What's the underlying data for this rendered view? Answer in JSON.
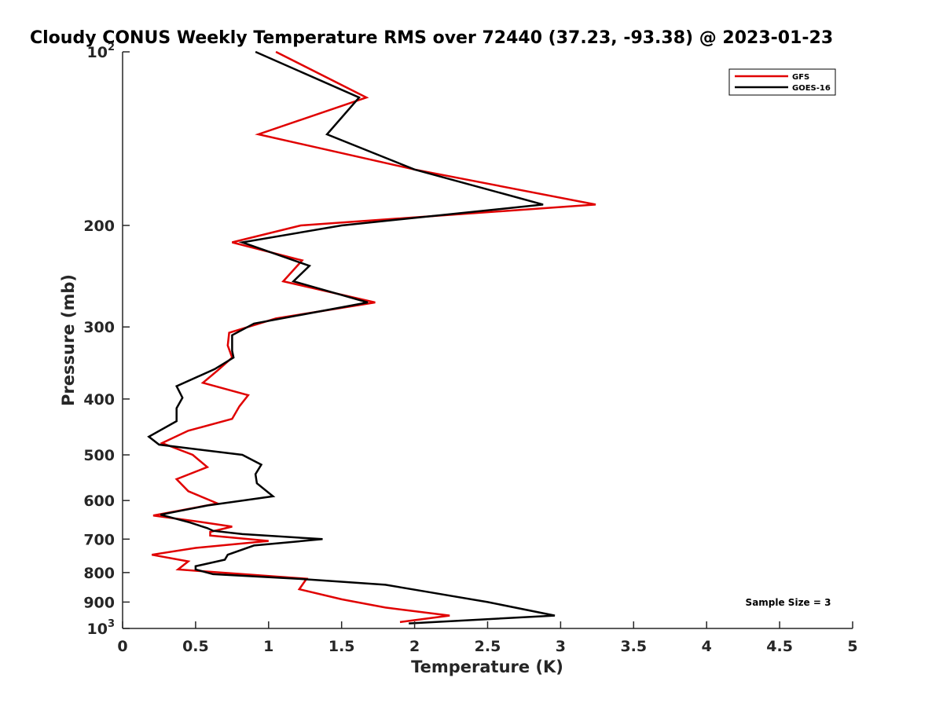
{
  "chart_data": {
    "type": "line",
    "title": "Cloudy CONUS Weekly Temperature RMS over 72440 (37.23, -93.38) @ 2023-01-23",
    "xlabel": "Temperature (K)",
    "ylabel": "Pressure (mb)",
    "xlim": [
      0,
      5
    ],
    "ylim": [
      100,
      1000
    ],
    "y_scale": "log",
    "y_reversed": true,
    "x_ticks": [
      "0",
      "0.5",
      "1",
      "1.5",
      "2",
      "2.5",
      "3",
      "3.5",
      "4",
      "4.5",
      "5"
    ],
    "y_ticks": [
      {
        "value": 100,
        "base": "10",
        "exp": "2"
      },
      {
        "value": 200,
        "label": "200"
      },
      {
        "value": 300,
        "label": "300"
      },
      {
        "value": 400,
        "label": "400"
      },
      {
        "value": 500,
        "label": "500"
      },
      {
        "value": 600,
        "label": "600"
      },
      {
        "value": 700,
        "label": "700"
      },
      {
        "value": 800,
        "label": "800"
      },
      {
        "value": 900,
        "label": "900"
      },
      {
        "value": 1000,
        "base": "10",
        "exp": "3"
      }
    ],
    "grid": false,
    "legend_position": "top-right",
    "annotation": "Sample Size = 3",
    "series": [
      {
        "name": "GFS",
        "color": "#e00000",
        "points": [
          [
            1.05,
            100
          ],
          [
            1.67,
            120
          ],
          [
            0.93,
            139
          ],
          [
            2.0,
            160
          ],
          [
            3.24,
            184
          ],
          [
            1.22,
            200
          ],
          [
            0.75,
            214
          ],
          [
            1.23,
            230
          ],
          [
            1.1,
            250
          ],
          [
            1.73,
            272
          ],
          [
            1.05,
            290
          ],
          [
            0.73,
            307
          ],
          [
            0.72,
            323
          ],
          [
            0.75,
            339
          ],
          [
            0.65,
            357
          ],
          [
            0.55,
            375
          ],
          [
            0.86,
            394
          ],
          [
            0.8,
            412
          ],
          [
            0.75,
            433
          ],
          [
            0.45,
            454
          ],
          [
            0.27,
            477
          ],
          [
            0.48,
            500
          ],
          [
            0.58,
            525
          ],
          [
            0.37,
            551
          ],
          [
            0.45,
            578
          ],
          [
            0.65,
            607
          ],
          [
            0.21,
            637
          ],
          [
            0.56,
            655
          ],
          [
            0.75,
            666
          ],
          [
            0.6,
            680
          ],
          [
            0.6,
            690
          ],
          [
            1.0,
            705
          ],
          [
            0.5,
            725
          ],
          [
            0.2,
            745
          ],
          [
            0.45,
            765
          ],
          [
            0.38,
            790
          ],
          [
            1.26,
            820
          ],
          [
            1.21,
            855
          ],
          [
            1.5,
            890
          ],
          [
            1.8,
            920
          ],
          [
            2.24,
            950
          ],
          [
            1.9,
            975
          ]
        ]
      },
      {
        "name": "GOES-16",
        "color": "#000000",
        "points": [
          [
            0.91,
            100
          ],
          [
            1.62,
            120
          ],
          [
            1.4,
            139
          ],
          [
            2.0,
            160
          ],
          [
            2.88,
            184
          ],
          [
            1.5,
            200
          ],
          [
            0.82,
            214
          ],
          [
            1.28,
            235
          ],
          [
            1.17,
            250
          ],
          [
            1.68,
            272
          ],
          [
            0.9,
            296
          ],
          [
            0.75,
            310
          ],
          [
            0.75,
            330
          ],
          [
            0.76,
            339
          ],
          [
            0.63,
            355
          ],
          [
            0.37,
            380
          ],
          [
            0.41,
            398
          ],
          [
            0.37,
            415
          ],
          [
            0.37,
            437
          ],
          [
            0.18,
            465
          ],
          [
            0.25,
            480
          ],
          [
            0.82,
            500
          ],
          [
            0.95,
            520
          ],
          [
            0.91,
            540
          ],
          [
            0.92,
            560
          ],
          [
            1.03,
            590
          ],
          [
            0.58,
            612
          ],
          [
            0.26,
            635
          ],
          [
            0.46,
            655
          ],
          [
            0.58,
            670
          ],
          [
            0.62,
            677
          ],
          [
            0.82,
            686
          ],
          [
            1.37,
            700
          ],
          [
            0.9,
            718
          ],
          [
            0.72,
            745
          ],
          [
            0.7,
            760
          ],
          [
            0.5,
            780
          ],
          [
            0.5,
            790
          ],
          [
            0.62,
            805
          ],
          [
            1.2,
            820
          ],
          [
            1.8,
            840
          ],
          [
            2.1,
            865
          ],
          [
            2.5,
            900
          ],
          [
            2.96,
            950
          ],
          [
            1.96,
            980
          ]
        ]
      }
    ]
  }
}
